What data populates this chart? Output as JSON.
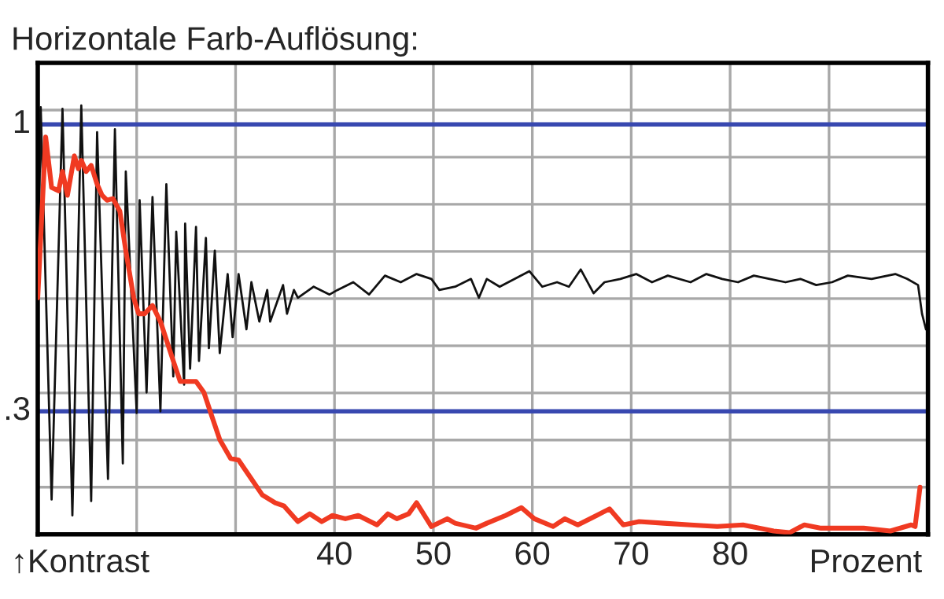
{
  "chart_data": {
    "type": "line",
    "title": "Horizontale Farb-Auflösung:",
    "xlabel": "Prozent",
    "annotations": [
      "↑Kontrast"
    ],
    "xlim": [
      10,
      100
    ],
    "xticks": [
      {
        "value": 20,
        "label": null
      },
      {
        "value": 30,
        "label": null
      },
      40,
      50,
      60,
      70,
      80,
      {
        "value": 90,
        "label": null
      }
    ],
    "ylim": [
      0,
      1.15
    ],
    "yticks": [
      {
        "value": 0.115,
        "label": null
      },
      {
        "value": 0.23,
        "label": null
      },
      {
        "value": 0.345,
        "label": null
      },
      {
        "value": 0.46,
        "label": null
      },
      {
        "value": 0.575,
        "label": null
      },
      {
        "value": 0.69,
        "label": null
      },
      {
        "value": 0.805,
        "label": null
      },
      {
        "value": 0.92,
        "label": null
      },
      {
        "value": 1.035,
        "label": null
      }
    ],
    "grid": true,
    "legend": false,
    "marker": "none",
    "line_style": "solid",
    "ref_lines": [
      {
        "axis": "y",
        "value": 1,
        "label": "1",
        "color": "#3848b0"
      },
      {
        "axis": "y",
        "value": 0.3,
        "label": ".3",
        "color": "#3848b0"
      }
    ],
    "series": [
      {
        "color": "#111111",
        "x": [
          10.0,
          10.3,
          11.4,
          12.5,
          13.5,
          14.4,
          15.4,
          16.0,
          17.1,
          17.8,
          18.6,
          18.9,
          20.0,
          20.3,
          21.0,
          21.6,
          22.4,
          23.0,
          23.7,
          24.0,
          24.8,
          24.9,
          25.4,
          26.0,
          26.3,
          27.0,
          27.3,
          27.9,
          28.4,
          29.2,
          29.7,
          30.3,
          31.1,
          31.6,
          32.4,
          33.2,
          33.5,
          34.8,
          35.2,
          35.9,
          36.3,
          37.9,
          39.5,
          40.3,
          41.9,
          43.5,
          45.1,
          46.7,
          48.3,
          49.8,
          50.6,
          52.2,
          53.8,
          54.6,
          55.4,
          56.7,
          59.7,
          61.0,
          62.5,
          63.7,
          64.9,
          66.2,
          67.3,
          68.9,
          70.5,
          72.1,
          73.7,
          76.0,
          77.6,
          79.2,
          80.8,
          82.4,
          84.0,
          85.6,
          87.1,
          88.7,
          90.3,
          91.9,
          94.3,
          96.7,
          97.9,
          99.0,
          99.4,
          99.8
        ],
        "values": [
          0.538,
          1.042,
          0.085,
          1.038,
          0.046,
          1.046,
          0.081,
          0.981,
          0.135,
          0.988,
          0.173,
          0.885,
          0.296,
          0.815,
          0.346,
          0.823,
          0.3,
          0.854,
          0.385,
          0.738,
          0.365,
          0.758,
          0.404,
          0.75,
          0.423,
          0.723,
          0.454,
          0.692,
          0.442,
          0.635,
          0.481,
          0.635,
          0.5,
          0.615,
          0.519,
          0.596,
          0.519,
          0.608,
          0.538,
          0.596,
          0.577,
          0.604,
          0.585,
          0.596,
          0.615,
          0.585,
          0.631,
          0.615,
          0.635,
          0.623,
          0.596,
          0.604,
          0.623,
          0.577,
          0.623,
          0.604,
          0.642,
          0.604,
          0.615,
          0.604,
          0.646,
          0.588,
          0.615,
          0.623,
          0.635,
          0.615,
          0.631,
          0.615,
          0.635,
          0.623,
          0.615,
          0.631,
          0.623,
          0.615,
          0.623,
          0.608,
          0.615,
          0.631,
          0.623,
          0.635,
          0.623,
          0.608,
          0.538,
          0.5
        ]
      },
      {
        "color": "#f03a22",
        "x": [
          10.0,
          10.8,
          11.4,
          12.1,
          12.5,
          13.0,
          13.7,
          14.1,
          14.4,
          14.9,
          15.4,
          16.0,
          16.5,
          17.0,
          17.6,
          18.3,
          18.9,
          19.7,
          20.2,
          20.8,
          21.6,
          22.4,
          23.7,
          24.4,
          26.0,
          26.8,
          27.6,
          28.4,
          29.5,
          30.3,
          31.6,
          32.7,
          34.0,
          34.9,
          36.3,
          37.5,
          38.7,
          39.8,
          41.1,
          42.4,
          44.3,
          45.4,
          46.3,
          47.5,
          48.3,
          49.8,
          51.4,
          52.2,
          54.3,
          55.4,
          57.3,
          58.9,
          60.2,
          62.1,
          63.3,
          64.6,
          66.5,
          67.8,
          69.2,
          70.8,
          73.3,
          76.0,
          78.7,
          81.3,
          84.4,
          86.0,
          87.5,
          89.2,
          93.5,
          96.2,
          98.3,
          98.7,
          99.2
        ],
        "values": [
          0.577,
          0.969,
          0.846,
          0.838,
          0.885,
          0.827,
          0.923,
          0.892,
          0.912,
          0.885,
          0.9,
          0.854,
          0.827,
          0.815,
          0.819,
          0.788,
          0.692,
          0.577,
          0.538,
          0.538,
          0.558,
          0.519,
          0.423,
          0.373,
          0.373,
          0.346,
          0.288,
          0.231,
          0.185,
          0.181,
          0.135,
          0.096,
          0.077,
          0.069,
          0.031,
          0.05,
          0.031,
          0.046,
          0.038,
          0.046,
          0.023,
          0.05,
          0.038,
          0.05,
          0.077,
          0.019,
          0.038,
          0.027,
          0.015,
          0.027,
          0.046,
          0.065,
          0.038,
          0.019,
          0.038,
          0.023,
          0.046,
          0.062,
          0.023,
          0.031,
          0.027,
          0.023,
          0.019,
          0.023,
          0.008,
          0.004,
          0.023,
          0.015,
          0.015,
          0.008,
          0.023,
          0.019,
          0.115
        ]
      }
    ]
  }
}
